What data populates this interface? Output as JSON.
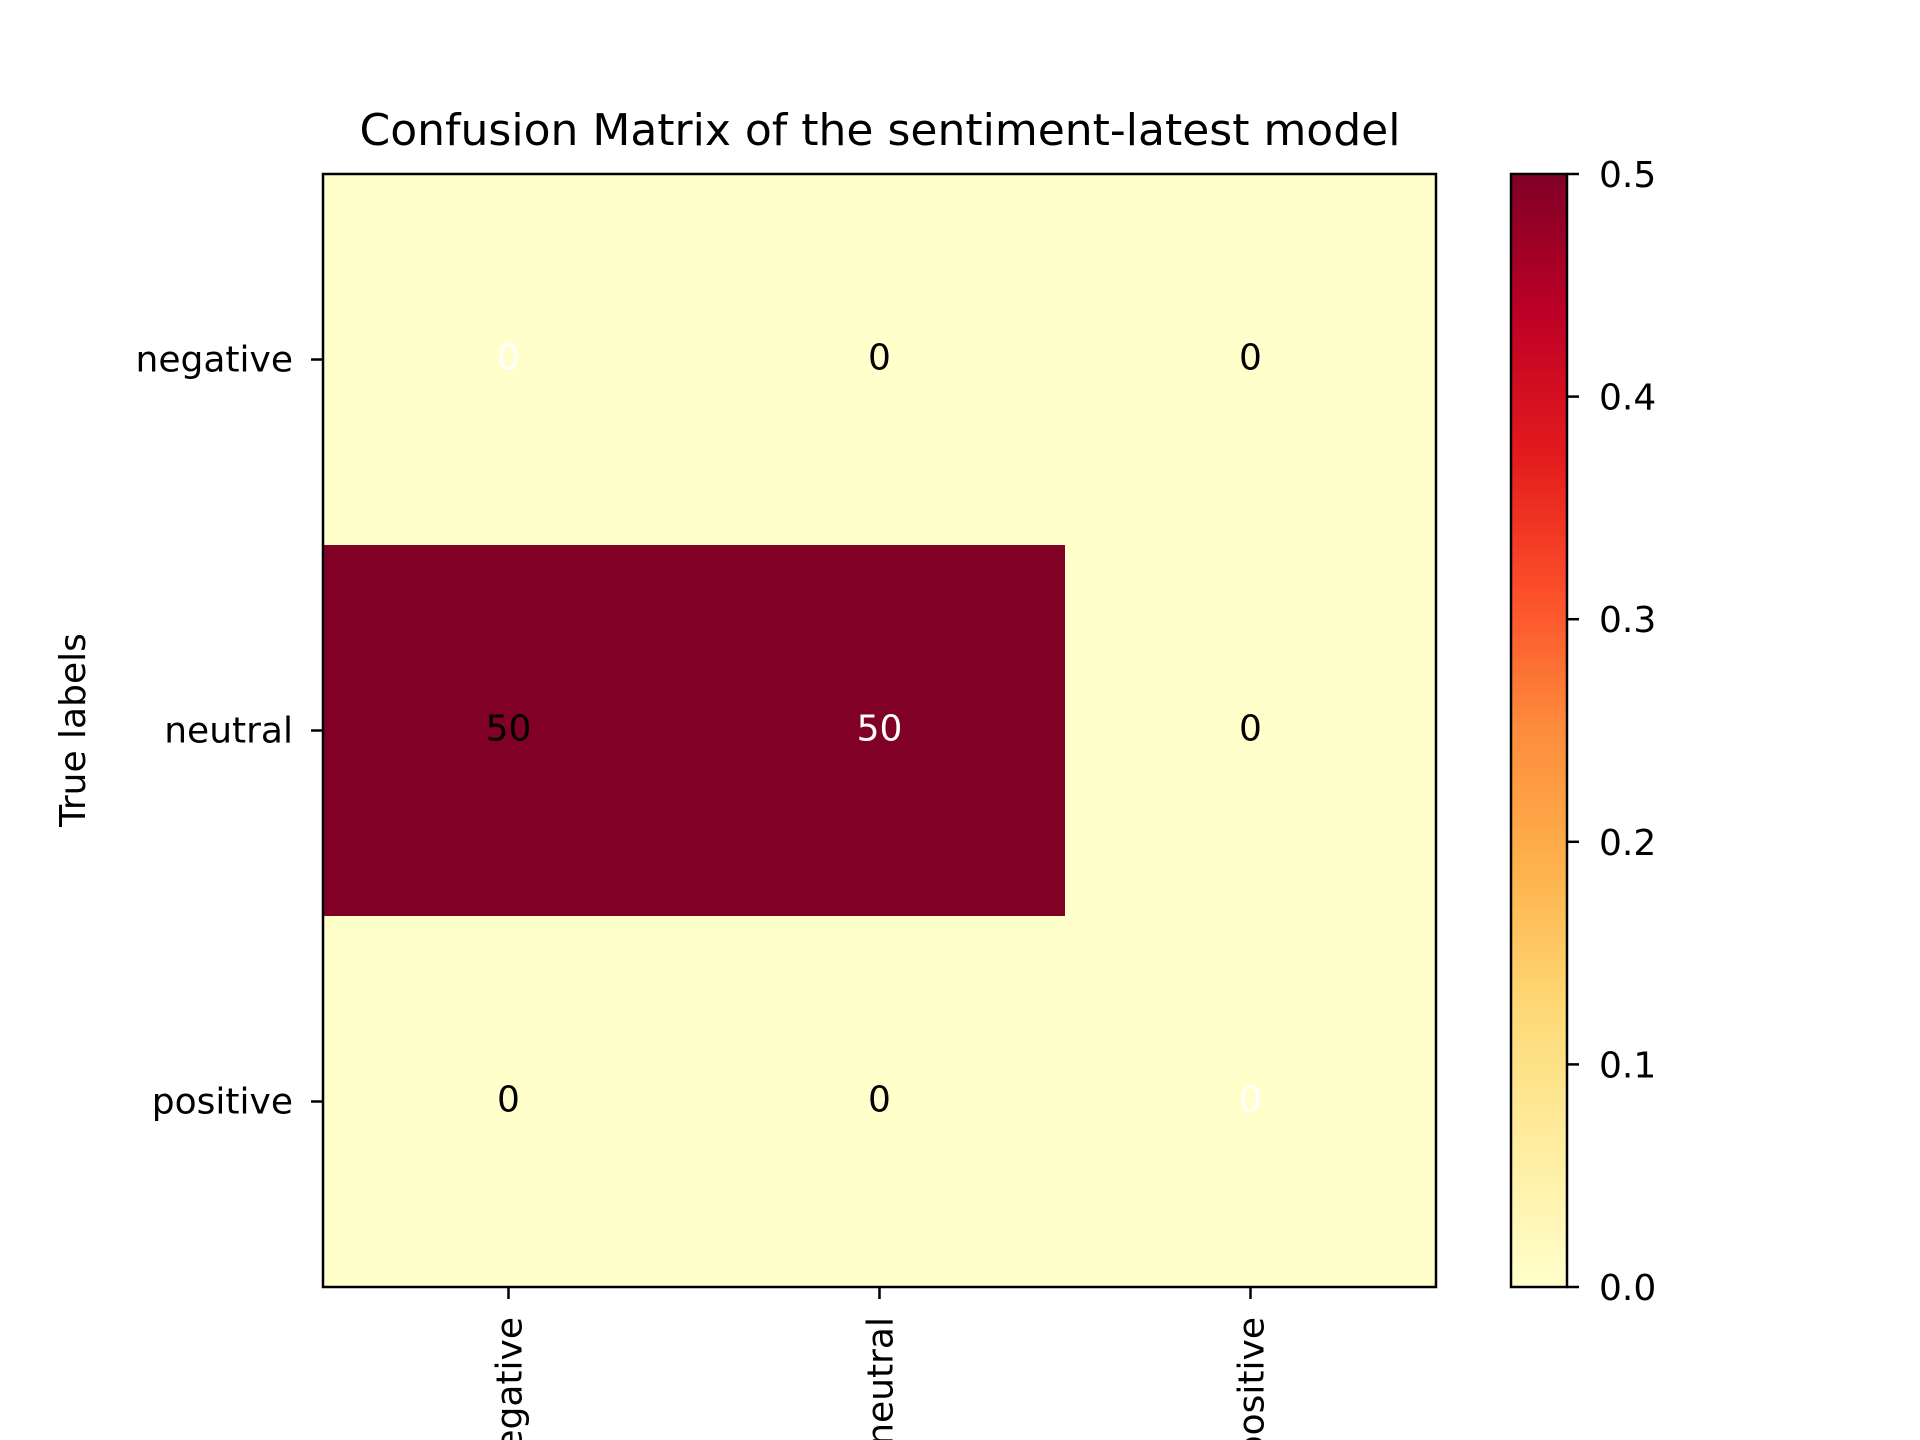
{
  "chart_data": {
    "type": "heatmap",
    "title": "Confusion Matrix of the sentiment-latest model",
    "xlabel": "",
    "ylabel": "True labels",
    "row_labels": [
      "negative",
      "neutral",
      "positive"
    ],
    "col_labels": [
      "negative",
      "neutral",
      "positive"
    ],
    "cell_labels": [
      [
        "0",
        "0",
        "0"
      ],
      [
        "50",
        "50",
        "0"
      ],
      [
        "0",
        "0",
        "0"
      ]
    ],
    "values": [
      [
        0,
        0,
        0
      ],
      [
        0.5,
        0.5,
        0
      ],
      [
        0,
        0,
        0
      ]
    ],
    "colorbar": {
      "min": 0.0,
      "max": 0.5,
      "ticks": [
        "0.0",
        "0.1",
        "0.2",
        "0.3",
        "0.4",
        "0.5"
      ],
      "colormap": "YlOrRd",
      "colors": [
        "#ffffcc",
        "#ffeda0",
        "#fed976",
        "#feb24c",
        "#fd8d3c",
        "#fc4e2a",
        "#e31a1c",
        "#bd0026",
        "#800026"
      ]
    },
    "annotation_text_colors": [
      [
        "#ffffff",
        "#000000",
        "#000000"
      ],
      [
        "#000000",
        "#ffffff",
        "#000000"
      ],
      [
        "#000000",
        "#000000",
        "#ffffff"
      ]
    ]
  }
}
